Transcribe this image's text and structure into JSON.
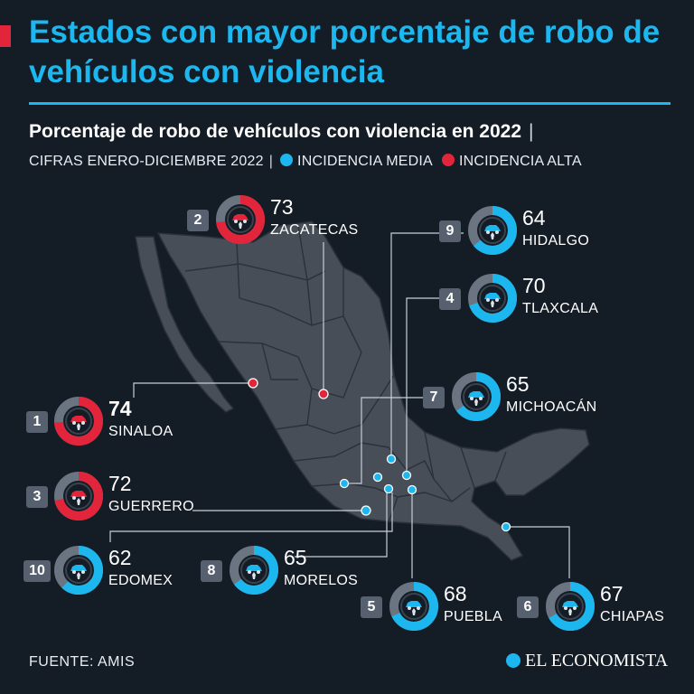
{
  "header": {
    "title": "Estados con mayor porcentaje de robo de vehículos con violencia",
    "subtitle": "Porcentaje de robo de vehículos con violencia en 2022",
    "subtitle_sep": "|",
    "note": "CIFRAS ENERO-DICIEMBRE 2022",
    "legend_sep": "|",
    "legend": [
      {
        "label": "INCIDENCIA MEDIA",
        "color": "#1cb7ef"
      },
      {
        "label": "INCIDENCIA ALTA",
        "color": "#e3253c"
      }
    ]
  },
  "footer": {
    "source": "FUENTE: AMIS",
    "brand": "EL ECONOMISTA"
  },
  "chart_data": {
    "type": "donut-map",
    "value_unit": "%",
    "colors": {
      "media": "#1cb7ef",
      "alta": "#e3253c",
      "remainder": "#6b7582",
      "map_fill": "#484e58",
      "map_border": "#2b313b",
      "leader": "#c8ced6"
    },
    "states": [
      {
        "rank": "1",
        "name": "SINALOA",
        "value": 74,
        "level": "alta",
        "highlight": true
      },
      {
        "rank": "2",
        "name": "ZACATECAS",
        "value": 73,
        "level": "alta"
      },
      {
        "rank": "3",
        "name": "GUERRERO",
        "value": 72,
        "level": "alta"
      },
      {
        "rank": "4",
        "name": "TLAXCALA",
        "value": 70,
        "level": "media"
      },
      {
        "rank": "5",
        "name": "PUEBLA",
        "value": 68,
        "level": "media"
      },
      {
        "rank": "6",
        "name": "CHIAPAS",
        "value": 67,
        "level": "media"
      },
      {
        "rank": "7",
        "name": "MICHOACÁN",
        "value": 65,
        "level": "media"
      },
      {
        "rank": "8",
        "name": "MORELOS",
        "value": 65,
        "level": "media"
      },
      {
        "rank": "9",
        "name": "HIDALGO",
        "value": 64,
        "level": "media"
      },
      {
        "rank": "10",
        "name": "EDOMEX",
        "value": 62,
        "level": "media"
      }
    ]
  }
}
